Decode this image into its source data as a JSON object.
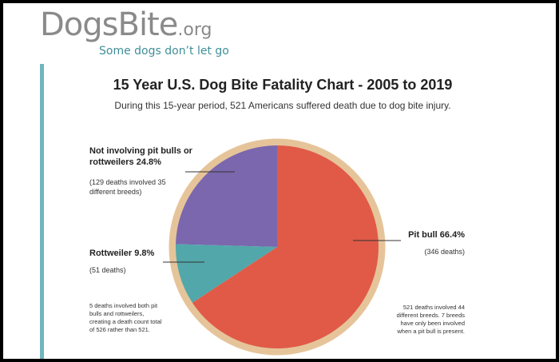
{
  "logo": {
    "name": "DogsBite",
    "suffix": ".org",
    "tagline": "Some dogs don’t let go"
  },
  "chart_data": {
    "type": "pie",
    "title": "15 Year U.S. Dog Bite Fatality Chart - 2005 to 2019",
    "subtitle": "During this 15-year period, 521 Americans suffered death due to dog bite injury.",
    "categories": [
      "Pit bull",
      "Rottweiler",
      "Not involving pit bulls or rottweilers"
    ],
    "values": [
      66.4,
      9.8,
      24.8
    ],
    "value_labels": [
      "66.4%",
      "9.8%",
      "24.8%"
    ],
    "colors": [
      "#e05a47",
      "#52a7aa",
      "#7a67ad"
    ],
    "slice_notes": [
      "(346 deaths)",
      "(51 deaths)",
      "(129 deaths involved 35 different breeds)"
    ],
    "annotations": [
      "5 deaths involved both pit bulls and rottweilers, creating a death count total of 526 rather than 521.",
      "521 deaths involved 44 different breeds. 7 breeds have only been involved when a pit bull is present."
    ]
  }
}
